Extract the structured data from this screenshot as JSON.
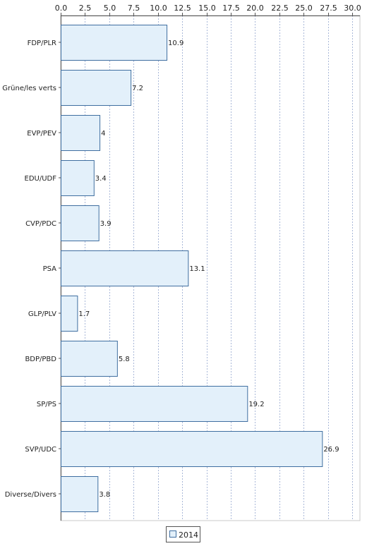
{
  "chart_data": {
    "type": "bar",
    "orientation": "horizontal",
    "categories": [
      "FDP/PLR",
      "Grüne/les verts",
      "EVP/PEV",
      "EDU/UDF",
      "CVP/PDC",
      "PSA",
      "GLP/PLV",
      "BDP/PBD",
      "SP/PS",
      "SVP/UDC",
      "Diverse/Divers"
    ],
    "series": [
      {
        "name": "2014",
        "values": [
          10.9,
          7.2,
          4,
          3.4,
          3.9,
          13.1,
          1.7,
          5.8,
          19.2,
          26.9,
          3.8
        ],
        "color": "#e3f0fa",
        "stroke": "#3f6ea0"
      }
    ],
    "xlim": [
      0,
      30
    ],
    "x_ticks": [
      "0.0",
      "2.5",
      "5.0",
      "7.5",
      "10.0",
      "12.5",
      "15.0",
      "17.5",
      "20.0",
      "22.5",
      "25.0",
      "27.5",
      "30.0"
    ],
    "x_tick_values": [
      0,
      2.5,
      5,
      7.5,
      10,
      12.5,
      15,
      17.5,
      20,
      22.5,
      25,
      27.5,
      30
    ],
    "x_axis_position": "top",
    "grid": true,
    "legend_position": "bottom",
    "data_labels": [
      "10.9",
      "7.2",
      "4",
      "3.4",
      "3.9",
      "13.1",
      "1.7",
      "5.8",
      "19.2",
      "26.9",
      "3.8"
    ],
    "title": "",
    "xlabel": "",
    "ylabel": ""
  },
  "legend": {
    "items": [
      {
        "label": "2014"
      }
    ]
  }
}
